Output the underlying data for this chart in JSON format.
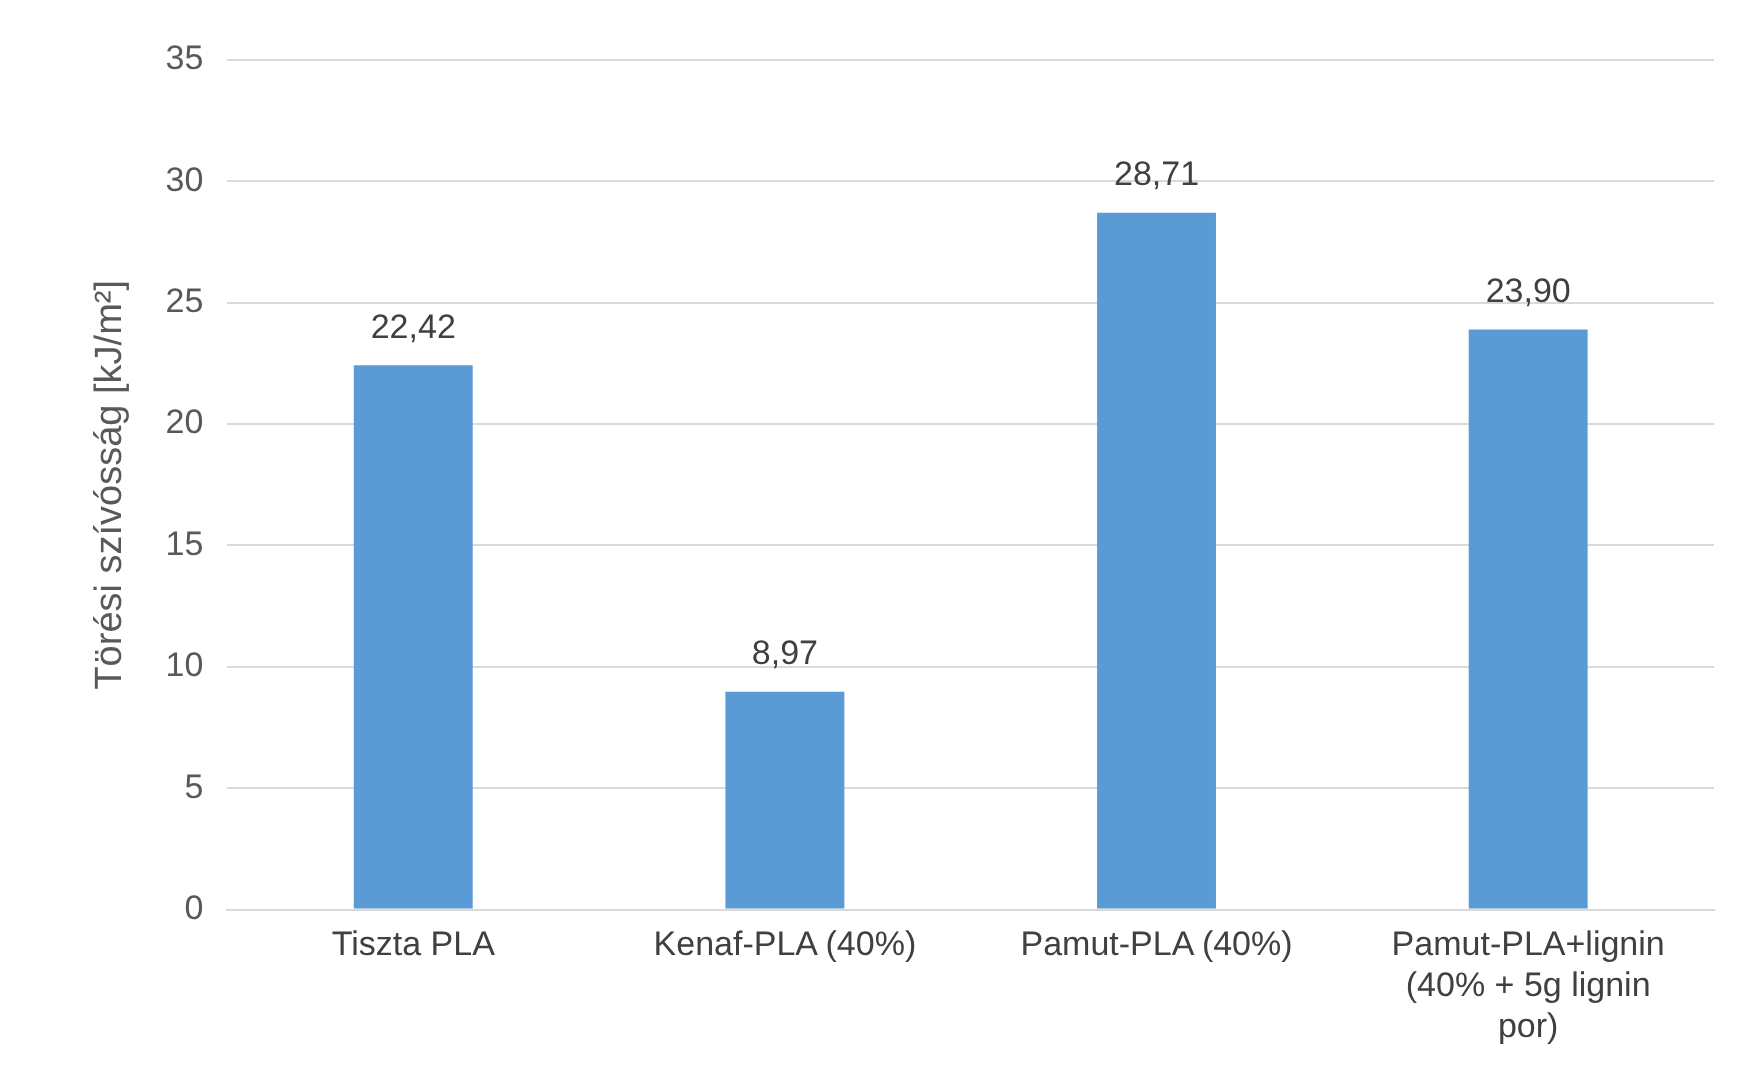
{
  "chart_data": {
    "type": "bar",
    "ylabel": "Törési szívósság [kJ/m²]",
    "categories": [
      "Tiszta PLA",
      "Kenaf-PLA (40%)",
      "Pamut-PLA (40%)",
      "Pamut-PLA+lignin (40% + 5g lignin por)"
    ],
    "values": [
      22.42,
      8.97,
      28.71,
      23.9
    ],
    "value_labels": [
      "22,42",
      "8,97",
      "28,71",
      "23,90"
    ],
    "color": "#5b9bd5",
    "ylim": [
      0,
      35
    ],
    "yticks": [
      0,
      5,
      10,
      15,
      20,
      25,
      30,
      35
    ],
    "grid": "y",
    "legend": false
  }
}
